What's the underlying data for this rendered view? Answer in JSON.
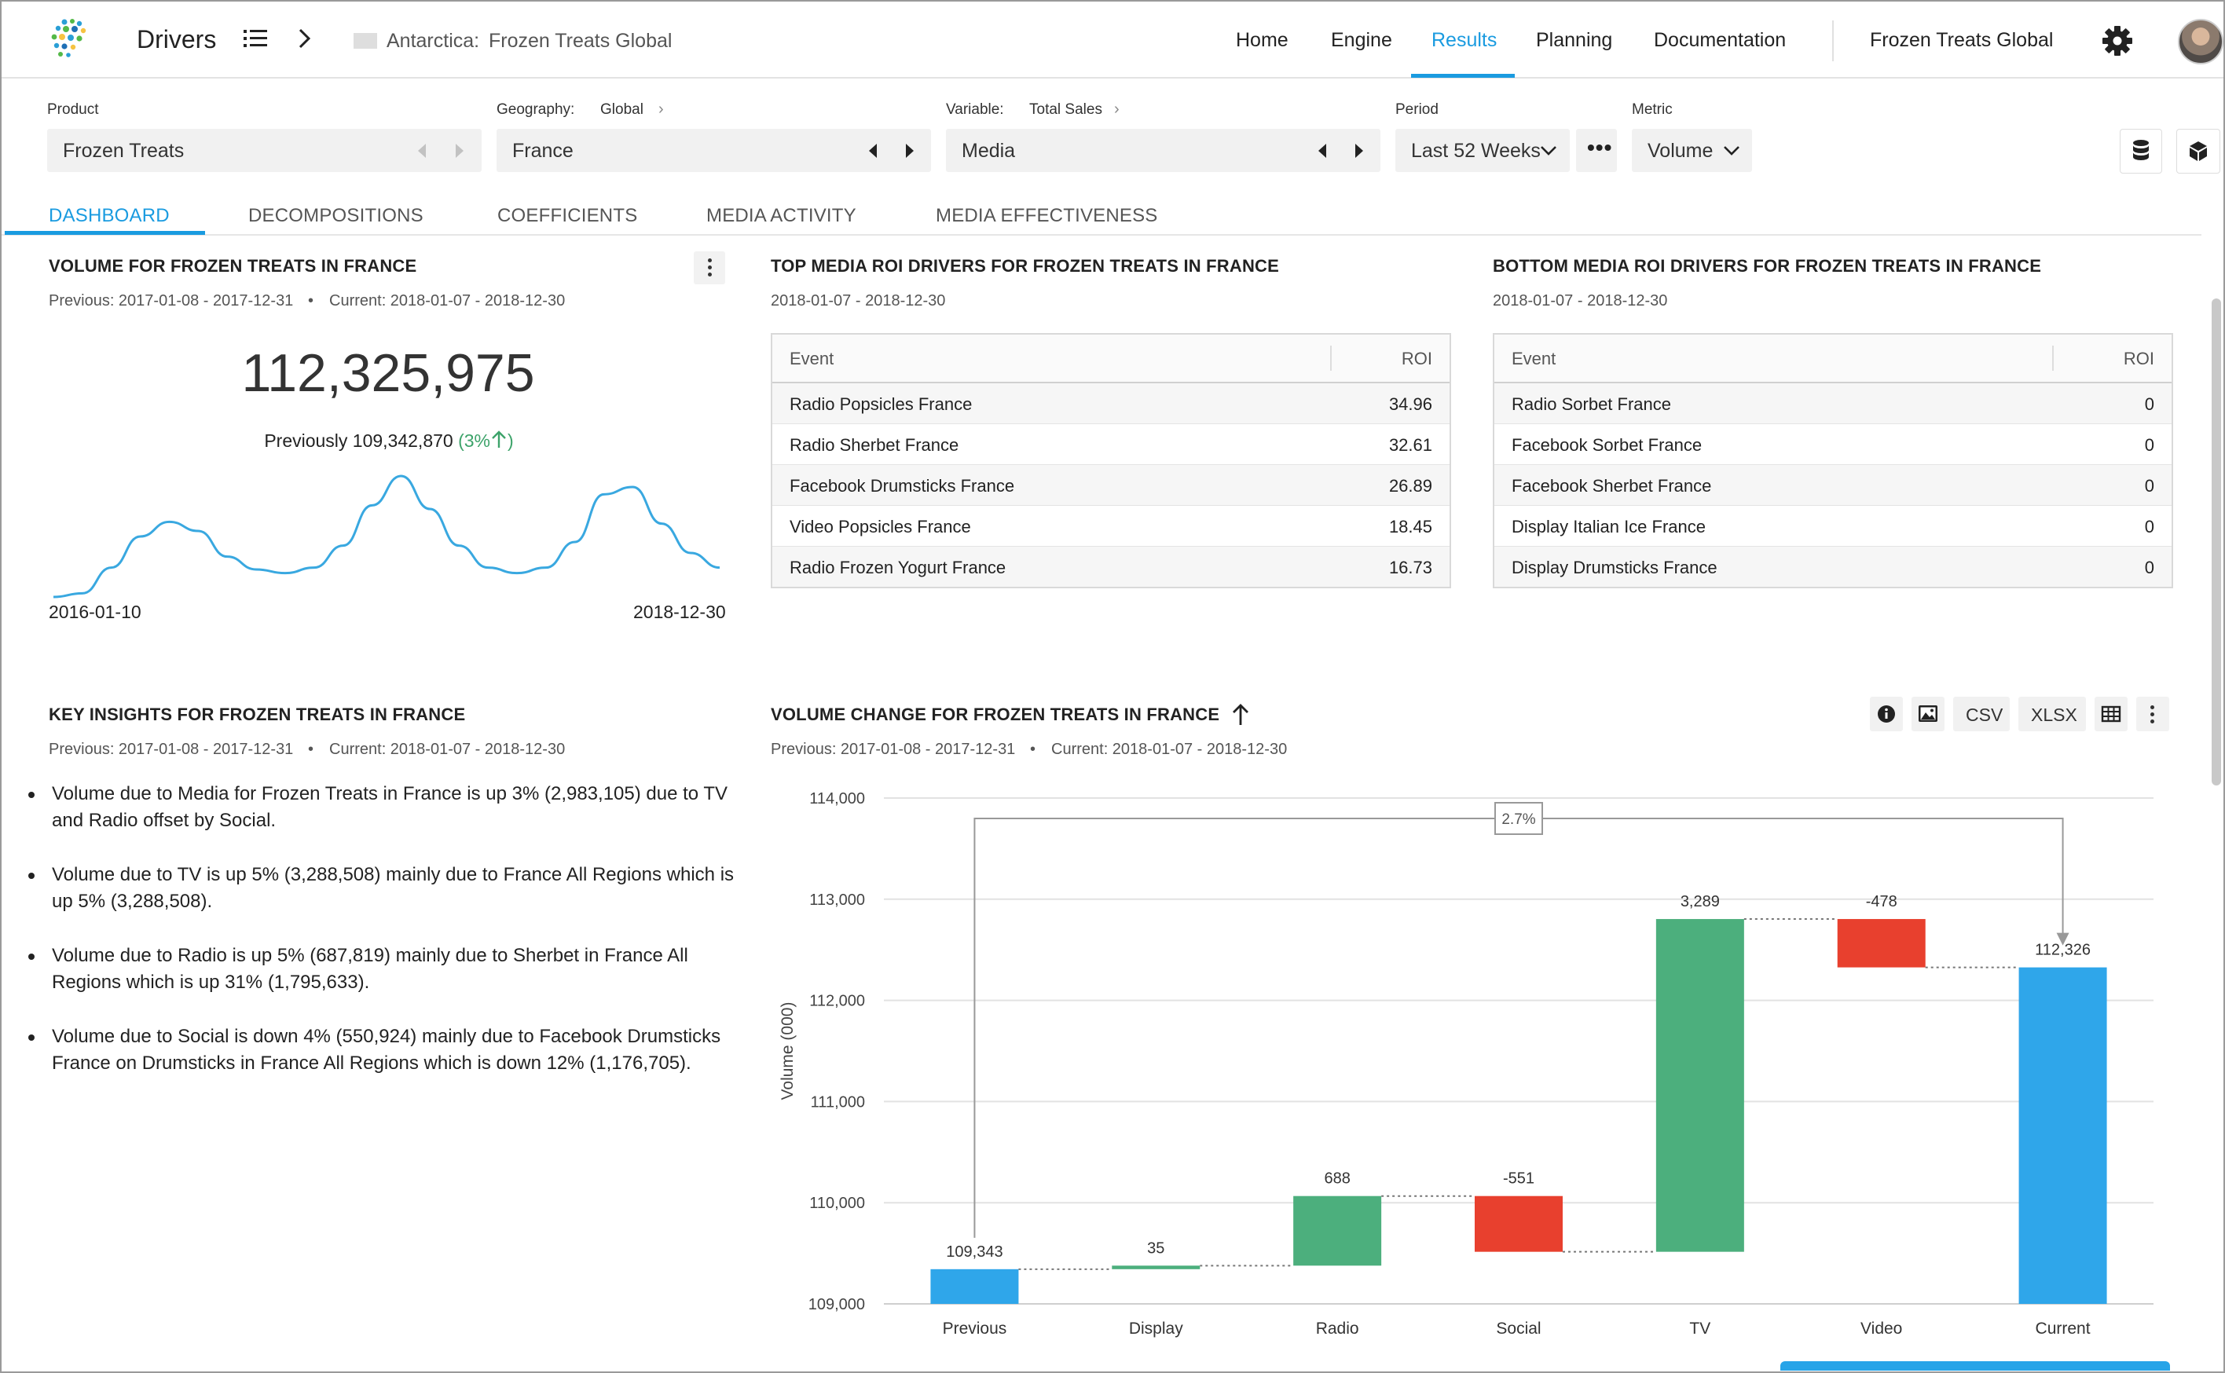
{
  "topbar": {
    "app_title": "Drivers",
    "breadcrumb_region": "Antarctica:",
    "breadcrumb_project": "Frozen Treats Global",
    "nav": [
      "Home",
      "Engine",
      "Results",
      "Planning",
      "Documentation"
    ],
    "active_nav": "Results",
    "org_name": "Frozen Treats Global"
  },
  "filters": {
    "product_label": "Product",
    "product_value": "Frozen Treats",
    "geography_label": "Geography:",
    "geography_level": "Global",
    "geography_value": "France",
    "variable_label": "Variable:",
    "variable_level": "Total Sales",
    "variable_value": "Media",
    "period_label": "Period",
    "period_value": "Last 52 Weeks",
    "metric_label": "Metric",
    "metric_value": "Volume"
  },
  "tabs": [
    "DASHBOARD",
    "DECOMPOSITIONS",
    "COEFFICIENTS",
    "MEDIA ACTIVITY",
    "MEDIA EFFECTIVENESS"
  ],
  "volume_panel": {
    "title": "VOLUME FOR FROZEN TREATS IN FRANCE",
    "period_previous": "Previous: 2017-01-08 - 2017-12-31",
    "dot": "•",
    "period_current": "Current: 2018-01-07 - 2018-12-30",
    "big_value": "112,325,975",
    "previously_text": "Previously 109,342,870",
    "change_text": "(3%",
    "change_close": ")",
    "date_start": "2016-01-10",
    "date_end": "2018-12-30"
  },
  "top_roi": {
    "title": "TOP MEDIA ROI DRIVERS FOR FROZEN TREATS IN FRANCE",
    "period": "2018-01-07 - 2018-12-30",
    "col_event": "Event",
    "col_roi": "ROI",
    "rows": [
      {
        "event": "Radio Popsicles France",
        "roi": "34.96"
      },
      {
        "event": "Radio Sherbet France",
        "roi": "32.61"
      },
      {
        "event": "Facebook Drumsticks France",
        "roi": "26.89"
      },
      {
        "event": "Video Popsicles France",
        "roi": "18.45"
      },
      {
        "event": "Radio Frozen Yogurt France",
        "roi": "16.73"
      }
    ]
  },
  "bottom_roi": {
    "title": "BOTTOM MEDIA ROI DRIVERS FOR FROZEN TREATS IN FRANCE",
    "period": "2018-01-07 - 2018-12-30",
    "col_event": "Event",
    "col_roi": "ROI",
    "rows": [
      {
        "event": "Radio Sorbet France",
        "roi": "0"
      },
      {
        "event": "Facebook Sorbet France",
        "roi": "0"
      },
      {
        "event": "Facebook Sherbet France",
        "roi": "0"
      },
      {
        "event": "Display Italian Ice France",
        "roi": "0"
      },
      {
        "event": "Display Drumsticks France",
        "roi": "0"
      }
    ]
  },
  "insights": {
    "title": "KEY INSIGHTS FOR FROZEN TREATS IN FRANCE",
    "period_previous": "Previous: 2017-01-08 - 2017-12-31",
    "dot": "•",
    "period_current": "Current: 2018-01-07 - 2018-12-30",
    "items": [
      "Volume due to Media for Frozen Treats in France is up 3% (2,983,105) due to TV and Radio offset by Social.",
      "Volume due to TV is up 5% (3,288,508) mainly due to France All Regions which is up 5% (3,288,508).",
      "Volume due to Radio is up 5% (687,819) mainly due to Sherbet in France All Regions which is up 31% (1,795,633).",
      "Volume due to Social is down 4% (550,924) mainly due to Facebook Drumsticks France on Drumsticks in France All Regions which is down 12% (1,176,705)."
    ]
  },
  "waterfall_panel": {
    "title": "VOLUME CHANGE FOR FROZEN TREATS IN FRANCE",
    "period_previous": "Previous: 2017-01-08 - 2017-12-31",
    "dot": "•",
    "period_current": "Current: 2018-01-07 - 2018-12-30",
    "btn_csv": "CSV",
    "btn_xlsx": "XLSX"
  },
  "colors": {
    "accent": "#1a9be0",
    "increase": "#4caf7d",
    "decrease": "#e8402e",
    "total": "#2fa6ea",
    "sparkline": "#39a8e0"
  },
  "chart_data": [
    {
      "type": "line",
      "series": [
        {
          "values": [
            109.0,
            109.2,
            110.6,
            112.3,
            113.1,
            112.6,
            111.2,
            110.5,
            110.3,
            110.6,
            111.8,
            114.0,
            115.6,
            113.8,
            111.8,
            110.6,
            110.3,
            110.6,
            112.0,
            114.6,
            115.0,
            113.0,
            111.4,
            110.6
          ]
        }
      ],
      "x_start": "2016-01-10",
      "x_end": "2018-12-30"
    },
    {
      "type": "bar",
      "subtype": "waterfall",
      "categories": [
        "Previous",
        "Display",
        "Radio",
        "Social",
        "TV",
        "Video",
        "Current"
      ],
      "values": [
        109343,
        35,
        688,
        -551,
        3289,
        -478,
        112326
      ],
      "value_labels": [
        "109,343",
        "35",
        "688",
        "-551",
        "3,289",
        "-478",
        "112,326"
      ],
      "kinds": [
        "total",
        "delta",
        "delta",
        "delta",
        "delta",
        "delta",
        "total"
      ],
      "ylabel": "Volume (000)",
      "yticks": [
        "109,000",
        "110,000",
        "111,000",
        "112,000",
        "113,000",
        "114,000"
      ],
      "ylim": [
        109000,
        114000
      ],
      "change_label": "2.7%"
    }
  ]
}
